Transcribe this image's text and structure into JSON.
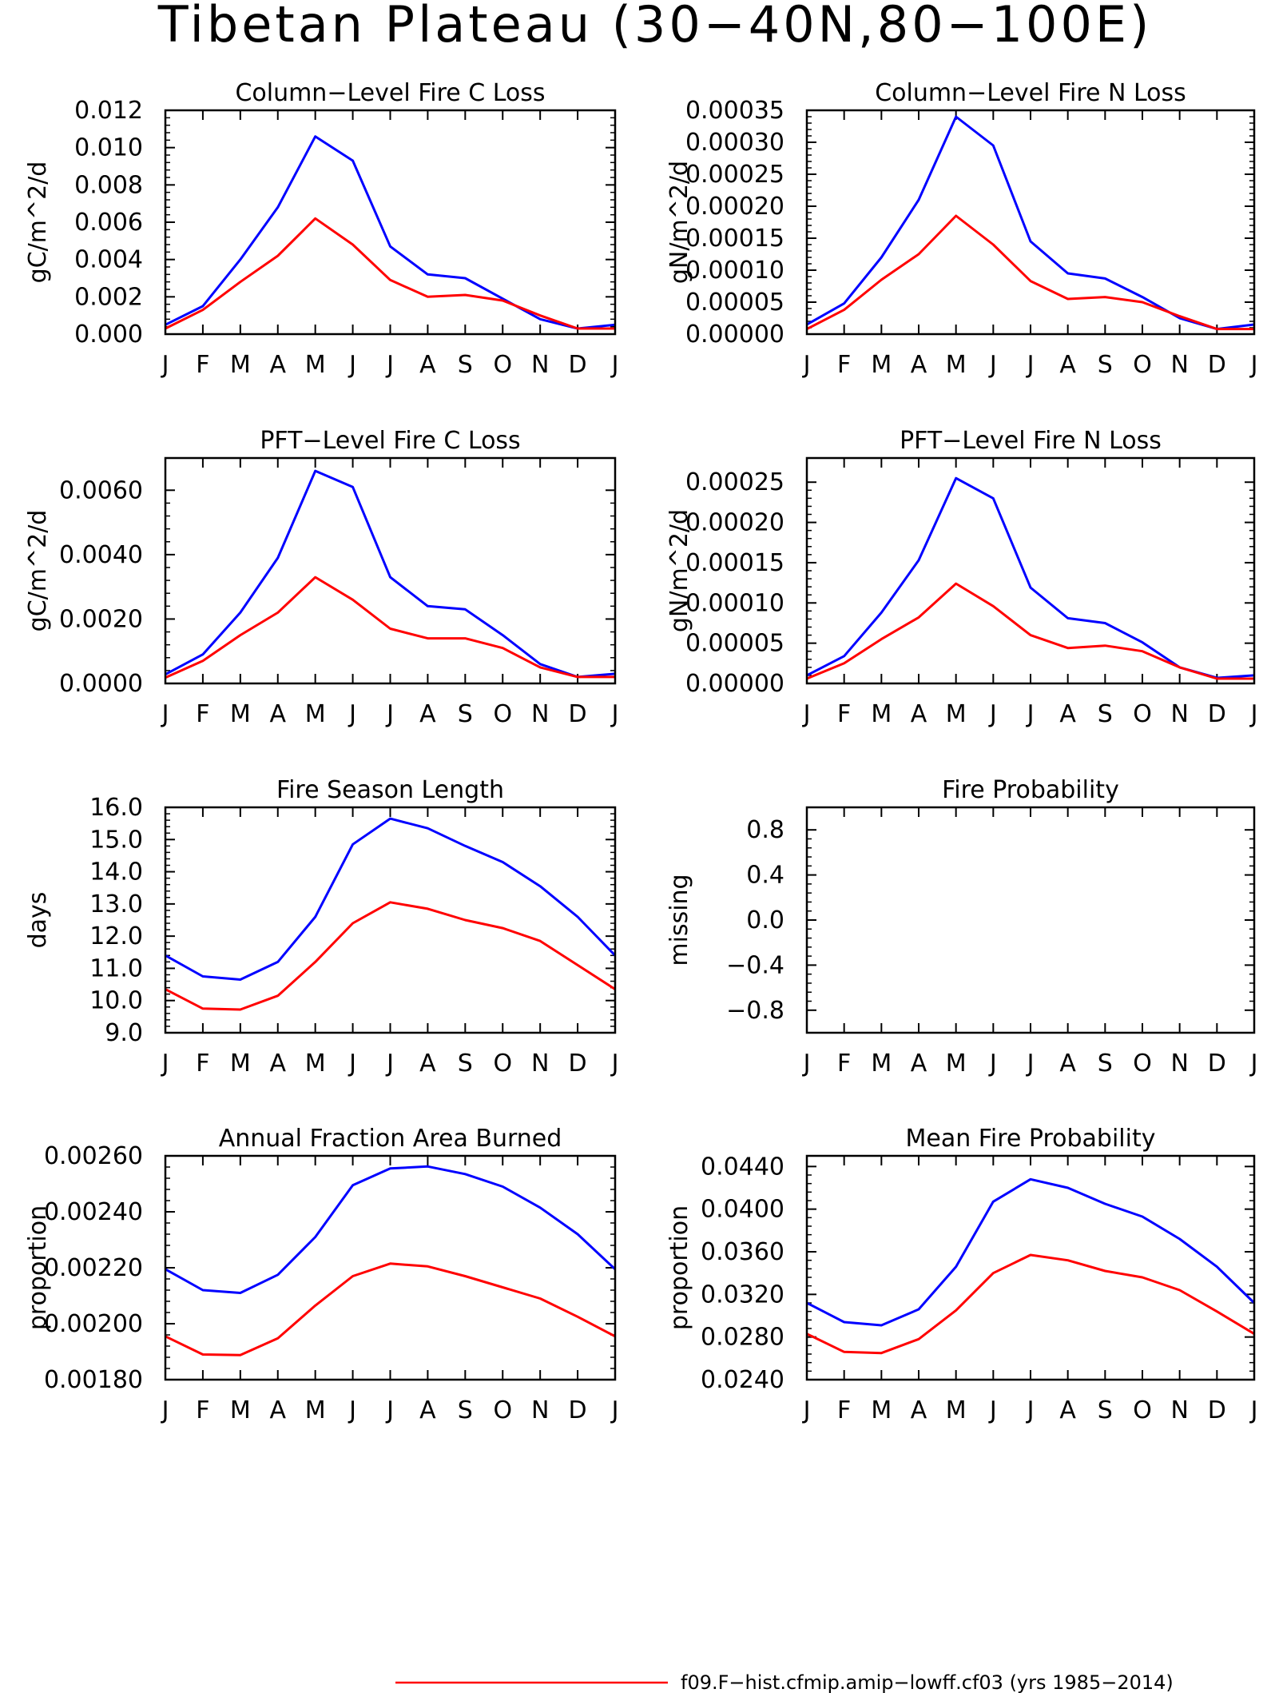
{
  "page": {
    "title": "Tibetan Plateau (30−40N,80−100E)"
  },
  "colors": {
    "series_a": "#ff0000",
    "series_b": "#0000ff",
    "axis": "#000000"
  },
  "months": [
    "J",
    "F",
    "M",
    "A",
    "M",
    "J",
    "J",
    "A",
    "S",
    "O",
    "N",
    "D",
    "J"
  ],
  "legend": {
    "label": "f09.F−hist.cfmip.amip−lowff.cf03 (yrs 1985−2014)"
  },
  "chart_data": [
    {
      "type": "line",
      "title": "Column−Level Fire C Loss",
      "ylabel": "gC/m^2/d",
      "ylim": [
        0,
        0.012
      ],
      "yticks": [
        "0.000",
        "0.002",
        "0.004",
        "0.006",
        "0.008",
        "0.010",
        "0.012"
      ],
      "x": [
        "J",
        "F",
        "M",
        "A",
        "M",
        "J",
        "J",
        "A",
        "S",
        "O",
        "N",
        "D",
        "J"
      ],
      "series": [
        {
          "color": "#0000ff",
          "values": [
            0.0005,
            0.0015,
            0.004,
            0.0068,
            0.0106,
            0.0093,
            0.0047,
            0.0032,
            0.003,
            0.0019,
            0.0008,
            0.0003,
            0.0005
          ]
        },
        {
          "color": "#ff0000",
          "values": [
            0.0003,
            0.0013,
            0.0028,
            0.0042,
            0.0062,
            0.0048,
            0.0029,
            0.002,
            0.0021,
            0.0018,
            0.001,
            0.0003,
            0.0003
          ]
        }
      ]
    },
    {
      "type": "line",
      "title": "Column−Level Fire N Loss",
      "ylabel": "gN/m^2/d",
      "ylim": [
        0,
        0.00035
      ],
      "yticks": [
        "0.00000",
        "0.00005",
        "0.00010",
        "0.00015",
        "0.00020",
        "0.00025",
        "0.00030",
        "0.00035"
      ],
      "x": [
        "J",
        "F",
        "M",
        "A",
        "M",
        "J",
        "J",
        "A",
        "S",
        "O",
        "N",
        "D",
        "J"
      ],
      "series": [
        {
          "color": "#0000ff",
          "values": [
            1.5e-05,
            4.8e-05,
            0.00012,
            0.00021,
            0.00034,
            0.000295,
            0.000145,
            9.5e-05,
            8.7e-05,
            5.8e-05,
            2.5e-05,
            8e-06,
            1.5e-05
          ]
        },
        {
          "color": "#ff0000",
          "values": [
            8e-06,
            3.8e-05,
            8.5e-05,
            0.000125,
            0.000185,
            0.00014,
            8.3e-05,
            5.5e-05,
            5.8e-05,
            5e-05,
            2.8e-05,
            8e-06,
            8e-06
          ]
        }
      ]
    },
    {
      "type": "line",
      "title": "PFT−Level Fire C Loss",
      "ylabel": "gC/m^2/d",
      "ylim": [
        0,
        0.007
      ],
      "yticks": [
        "0.0000",
        "0.0020",
        "0.0040",
        "0.0060"
      ],
      "ytick_values": [
        0,
        0.002,
        0.004,
        0.006
      ],
      "x": [
        "J",
        "F",
        "M",
        "A",
        "M",
        "J",
        "J",
        "A",
        "S",
        "O",
        "N",
        "D",
        "J"
      ],
      "series": [
        {
          "color": "#0000ff",
          "values": [
            0.00028,
            0.0009,
            0.0022,
            0.0039,
            0.0066,
            0.0061,
            0.0033,
            0.0024,
            0.0023,
            0.0015,
            0.0006,
            0.0002,
            0.0003
          ]
        },
        {
          "color": "#ff0000",
          "values": [
            0.00018,
            0.0007,
            0.0015,
            0.0022,
            0.0033,
            0.0026,
            0.0017,
            0.0014,
            0.0014,
            0.0011,
            0.0005,
            0.0002,
            0.0002
          ]
        }
      ]
    },
    {
      "type": "line",
      "title": "PFT−Level Fire N Loss",
      "ylabel": "gN/m^2/d",
      "ylim": [
        0,
        0.00028
      ],
      "yticks": [
        "0.00000",
        "0.00005",
        "0.00010",
        "0.00015",
        "0.00020",
        "0.00025"
      ],
      "ytick_values": [
        0,
        5e-05,
        0.0001,
        0.00015,
        0.0002,
        0.00025
      ],
      "x": [
        "J",
        "F",
        "M",
        "A",
        "M",
        "J",
        "J",
        "A",
        "S",
        "O",
        "N",
        "D",
        "J"
      ],
      "series": [
        {
          "color": "#0000ff",
          "values": [
            1e-05,
            3.4e-05,
            8.8e-05,
            0.000153,
            0.000255,
            0.00023,
            0.000119,
            8.1e-05,
            7.5e-05,
            5.1e-05,
            2e-05,
            7e-06,
            1e-05
          ]
        },
        {
          "color": "#ff0000",
          "values": [
            6e-06,
            2.5e-05,
            5.5e-05,
            8.2e-05,
            0.000124,
            9.6e-05,
            6e-05,
            4.4e-05,
            4.7e-05,
            4e-05,
            2e-05,
            6e-06,
            6e-06
          ]
        }
      ]
    },
    {
      "type": "line",
      "title": "Fire Season Length",
      "ylabel": "days",
      "ylim": [
        9.0,
        16.0
      ],
      "yticks": [
        "9.0",
        "10.0",
        "11.0",
        "12.0",
        "13.0",
        "14.0",
        "15.0",
        "16.0"
      ],
      "x": [
        "J",
        "F",
        "M",
        "A",
        "M",
        "J",
        "J",
        "A",
        "S",
        "O",
        "N",
        "D",
        "J"
      ],
      "series": [
        {
          "color": "#0000ff",
          "values": [
            11.4,
            10.75,
            10.65,
            11.2,
            12.6,
            14.85,
            15.65,
            15.35,
            14.8,
            14.3,
            13.55,
            12.6,
            11.4
          ]
        },
        {
          "color": "#ff0000",
          "values": [
            10.35,
            9.75,
            9.72,
            10.15,
            11.2,
            12.4,
            13.05,
            12.85,
            12.5,
            12.25,
            11.85,
            11.1,
            10.35
          ]
        }
      ]
    },
    {
      "type": "line",
      "title": "Fire Probability",
      "ylabel": "missing",
      "ylim": [
        -1.0,
        1.0
      ],
      "yticks": [
        "−0.8",
        "−0.4",
        "0.0",
        "0.4",
        "0.8"
      ],
      "ytick_values": [
        -0.8,
        -0.4,
        0.0,
        0.4,
        0.8
      ],
      "x": [
        "J",
        "F",
        "M",
        "A",
        "M",
        "J",
        "J",
        "A",
        "S",
        "O",
        "N",
        "D",
        "J"
      ],
      "series": []
    },
    {
      "type": "line",
      "title": "Annual Fraction Area Burned",
      "ylabel": "proportion",
      "ylim": [
        0.0018,
        0.0026
      ],
      "yticks": [
        "0.00180",
        "0.00200",
        "0.00220",
        "0.00240",
        "0.00260"
      ],
      "x": [
        "J",
        "F",
        "M",
        "A",
        "M",
        "J",
        "J",
        "A",
        "S",
        "O",
        "N",
        "D",
        "J"
      ],
      "series": [
        {
          "color": "#0000ff",
          "values": [
            0.002195,
            0.00212,
            0.00211,
            0.002175,
            0.00231,
            0.002495,
            0.002555,
            0.002562,
            0.002535,
            0.00249,
            0.002415,
            0.00232,
            0.002195
          ]
        },
        {
          "color": "#ff0000",
          "values": [
            0.001955,
            0.00189,
            0.001888,
            0.001948,
            0.002065,
            0.00217,
            0.002215,
            0.002205,
            0.00217,
            0.00213,
            0.00209,
            0.002025,
            0.001955
          ]
        }
      ]
    },
    {
      "type": "line",
      "title": "Mean Fire Probability",
      "ylabel": "proportion",
      "ylim": [
        0.024,
        0.045
      ],
      "yticks": [
        "0.0240",
        "0.0280",
        "0.0320",
        "0.0360",
        "0.0400",
        "0.0440"
      ],
      "ytick_values": [
        0.024,
        0.028,
        0.032,
        0.036,
        0.04,
        0.044
      ],
      "x": [
        "J",
        "F",
        "M",
        "A",
        "M",
        "J",
        "J",
        "A",
        "S",
        "O",
        "N",
        "D",
        "J"
      ],
      "series": [
        {
          "color": "#0000ff",
          "values": [
            0.0312,
            0.0294,
            0.0291,
            0.0306,
            0.0346,
            0.0407,
            0.0428,
            0.042,
            0.0405,
            0.0393,
            0.0372,
            0.0346,
            0.0312
          ]
        },
        {
          "color": "#ff0000",
          "values": [
            0.0283,
            0.0266,
            0.0265,
            0.0278,
            0.0305,
            0.034,
            0.0357,
            0.0352,
            0.0342,
            0.0336,
            0.0324,
            0.0304,
            0.0283
          ]
        }
      ]
    }
  ]
}
